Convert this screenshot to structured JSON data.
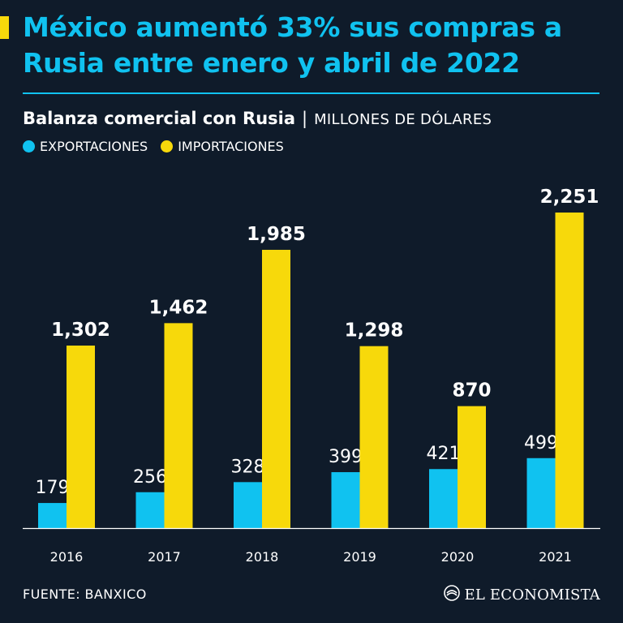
{
  "header": {
    "title": "México aumentó 33% sus compras a Rusia entre enero y abril de 2022",
    "subtitle": "Balanza comercial con Rusia",
    "separator": "|",
    "unit": "MILLONES DE DÓLARES"
  },
  "colors": {
    "background": "#0f1b2a",
    "exportaciones": "#10c2f0",
    "importaciones": "#f7d90b",
    "accent": "#f7d90b",
    "title": "#10c2f0"
  },
  "chart_data": {
    "type": "bar",
    "title": "Balanza comercial con Rusia",
    "subtitle": "MILLONES DE DÓLARES",
    "categories": [
      "2016",
      "2017",
      "2018",
      "2019",
      "2020",
      "2021"
    ],
    "series": [
      {
        "name": "EXPORTACIONES",
        "values": [
          179,
          256,
          328,
          399,
          421,
          499
        ],
        "labels": [
          "179",
          "256",
          "328",
          "399",
          "421",
          "499"
        ]
      },
      {
        "name": "IMPORTACIONES",
        "values": [
          1302,
          1462,
          1985,
          1298,
          870,
          2251
        ],
        "labels": [
          "1,302",
          "1,462",
          "1,985",
          "1,298",
          "870",
          "2,251"
        ]
      }
    ],
    "xlabel": "",
    "ylabel": "",
    "ylim": [
      0,
      2251
    ],
    "grid": false,
    "legend": "top-left"
  },
  "footer": {
    "source": "FUENTE: BANXICO",
    "brand": "EL ECONOMISTA",
    "brand_icon": "el-economista-logo-icon"
  }
}
